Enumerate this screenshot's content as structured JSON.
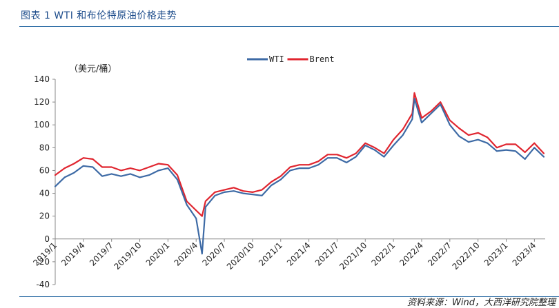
{
  "figure_title": "图表 1 WTI 和布伦特原油价格走势",
  "source_text": "资料来源：Wind，大西洋研究院整理",
  "chart_data": {
    "type": "line",
    "title": "",
    "unit": "（美元/桶）",
    "ylim": [
      -40,
      140
    ],
    "yticks": [
      -40,
      -20,
      0,
      20,
      40,
      60,
      80,
      100,
      120,
      140
    ],
    "x_ticks": [
      "2019/1",
      "2019/4",
      "2019/7",
      "2019/10",
      "2020/1",
      "2020/4",
      "2020/7",
      "2020/10",
      "2021/1",
      "2021/4",
      "2021/7",
      "2021/10",
      "2022/1",
      "2022/4",
      "2022/7",
      "2022/10",
      "2023/1",
      "2023/4"
    ],
    "x_range": [
      "2019/1",
      "2023/5"
    ],
    "legend_position": "top-center",
    "grid": false,
    "series": [
      {
        "name": "WTI",
        "color": "#3d6aa5",
        "x": [
          "2019/1",
          "2019/2",
          "2019/3",
          "2019/4",
          "2019/5",
          "2019/6",
          "2019/7",
          "2019/8",
          "2019/9",
          "2019/10",
          "2019/11",
          "2019/12",
          "2020/1",
          "2020/2",
          "2020/3",
          "2020/4",
          "2020/4/20",
          "2020/5",
          "2020/6",
          "2020/7",
          "2020/8",
          "2020/9",
          "2020/10",
          "2020/11",
          "2020/12",
          "2021/1",
          "2021/2",
          "2021/3",
          "2021/4",
          "2021/5",
          "2021/6",
          "2021/7",
          "2021/8",
          "2021/9",
          "2021/10",
          "2021/11",
          "2021/12",
          "2022/1",
          "2022/2",
          "2022/3",
          "2022/3/8",
          "2022/4",
          "2022/5",
          "2022/6",
          "2022/7",
          "2022/8",
          "2022/9",
          "2022/10",
          "2022/11",
          "2022/12",
          "2023/1",
          "2023/2",
          "2023/3",
          "2023/4",
          "2023/5"
        ],
        "values": [
          46,
          54,
          58,
          64,
          63,
          55,
          57,
          55,
          57,
          54,
          56,
          60,
          62,
          52,
          30,
          18,
          -13,
          28,
          38,
          41,
          42,
          40,
          39,
          38,
          47,
          52,
          60,
          62,
          62,
          65,
          71,
          71,
          67,
          72,
          82,
          78,
          72,
          82,
          91,
          105,
          123,
          102,
          110,
          118,
          100,
          90,
          85,
          87,
          84,
          77,
          78,
          77,
          70,
          80,
          72
        ]
      },
      {
        "name": "Brent",
        "color": "#e0252f",
        "x": [
          "2019/1",
          "2019/2",
          "2019/3",
          "2019/4",
          "2019/5",
          "2019/6",
          "2019/7",
          "2019/8",
          "2019/9",
          "2019/10",
          "2019/11",
          "2019/12",
          "2020/1",
          "2020/2",
          "2020/3",
          "2020/4",
          "2020/4/20",
          "2020/5",
          "2020/6",
          "2020/7",
          "2020/8",
          "2020/9",
          "2020/10",
          "2020/11",
          "2020/12",
          "2021/1",
          "2021/2",
          "2021/3",
          "2021/4",
          "2021/5",
          "2021/6",
          "2021/7",
          "2021/8",
          "2021/9",
          "2021/10",
          "2021/11",
          "2021/12",
          "2022/1",
          "2022/2",
          "2022/3",
          "2022/3/8",
          "2022/4",
          "2022/5",
          "2022/6",
          "2022/7",
          "2022/8",
          "2022/9",
          "2022/10",
          "2022/11",
          "2022/12",
          "2023/1",
          "2023/2",
          "2023/3",
          "2023/4",
          "2023/5"
        ],
        "values": [
          56,
          62,
          66,
          71,
          70,
          63,
          63,
          60,
          62,
          60,
          63,
          66,
          65,
          56,
          33,
          25,
          20,
          33,
          41,
          43,
          45,
          42,
          41,
          43,
          50,
          55,
          63,
          65,
          65,
          68,
          74,
          74,
          71,
          75,
          84,
          80,
          75,
          87,
          96,
          110,
          128,
          106,
          112,
          120,
          104,
          97,
          91,
          93,
          89,
          80,
          83,
          83,
          76,
          84,
          75
        ]
      }
    ]
  }
}
